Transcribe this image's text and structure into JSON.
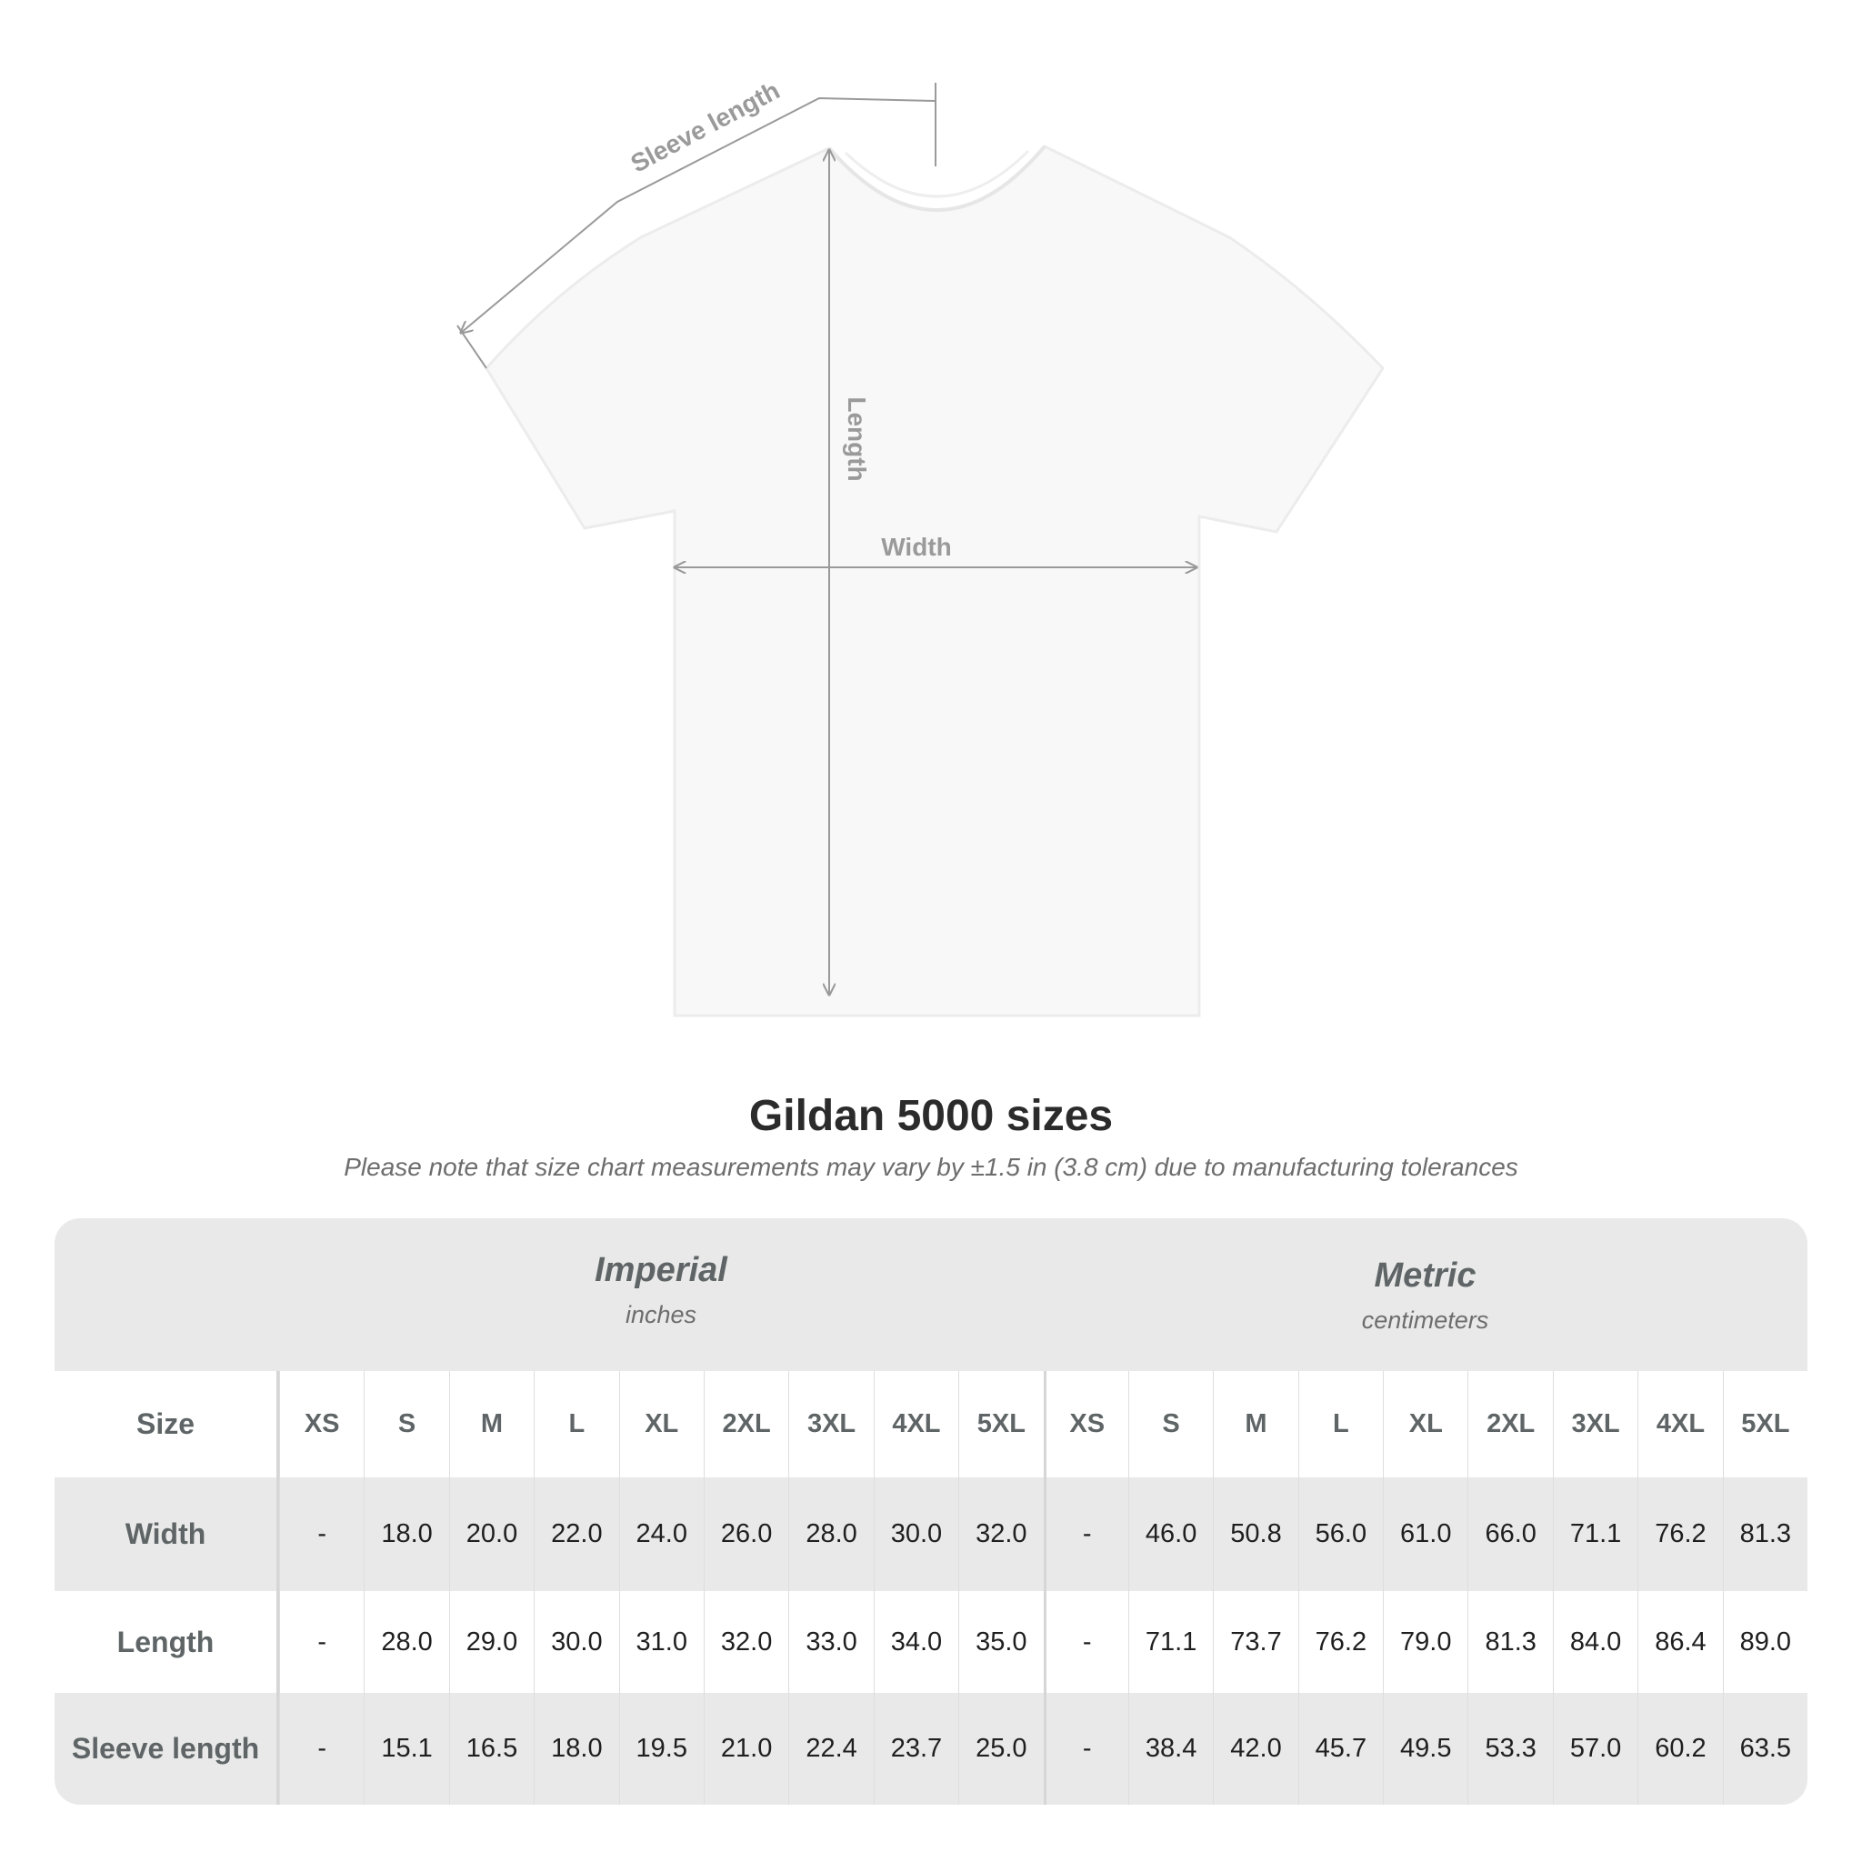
{
  "diagram": {
    "labels": {
      "sleeve": "Sleeve length",
      "length": "Length",
      "width": "Width"
    }
  },
  "title": "Gildan 5000 sizes",
  "note": "Please note that size chart measurements may vary by ±1.5 in (3.8 cm) due to manufacturing tolerances",
  "table": {
    "imperial": {
      "name": "Imperial",
      "unit": "inches"
    },
    "metric": {
      "name": "Metric",
      "unit": "centimeters"
    },
    "size_label": "Size",
    "sizes": [
      "XS",
      "S",
      "M",
      "L",
      "XL",
      "2XL",
      "3XL",
      "4XL",
      "5XL"
    ],
    "rows": [
      {
        "label": "Width",
        "imperial": [
          "-",
          "18.0",
          "20.0",
          "22.0",
          "24.0",
          "26.0",
          "28.0",
          "30.0",
          "32.0"
        ],
        "metric": [
          "-",
          "46.0",
          "50.8",
          "56.0",
          "61.0",
          "66.0",
          "71.1",
          "76.2",
          "81.3"
        ]
      },
      {
        "label": "Length",
        "imperial": [
          "-",
          "28.0",
          "29.0",
          "30.0",
          "31.0",
          "32.0",
          "33.0",
          "34.0",
          "35.0"
        ],
        "metric": [
          "-",
          "71.1",
          "73.7",
          "76.2",
          "79.0",
          "81.3",
          "84.0",
          "86.4",
          "89.0"
        ]
      },
      {
        "label": "Sleeve length",
        "imperial": [
          "-",
          "15.1",
          "16.5",
          "18.0",
          "19.5",
          "21.0",
          "22.4",
          "23.7",
          "25.0"
        ],
        "metric": [
          "-",
          "38.4",
          "42.0",
          "45.7",
          "49.5",
          "53.3",
          "57.0",
          "60.2",
          "63.5"
        ]
      }
    ]
  },
  "colors": {
    "band": "#e9e9e9",
    "label_text": "#5f6566",
    "measure_line": "#9a9a9a"
  }
}
